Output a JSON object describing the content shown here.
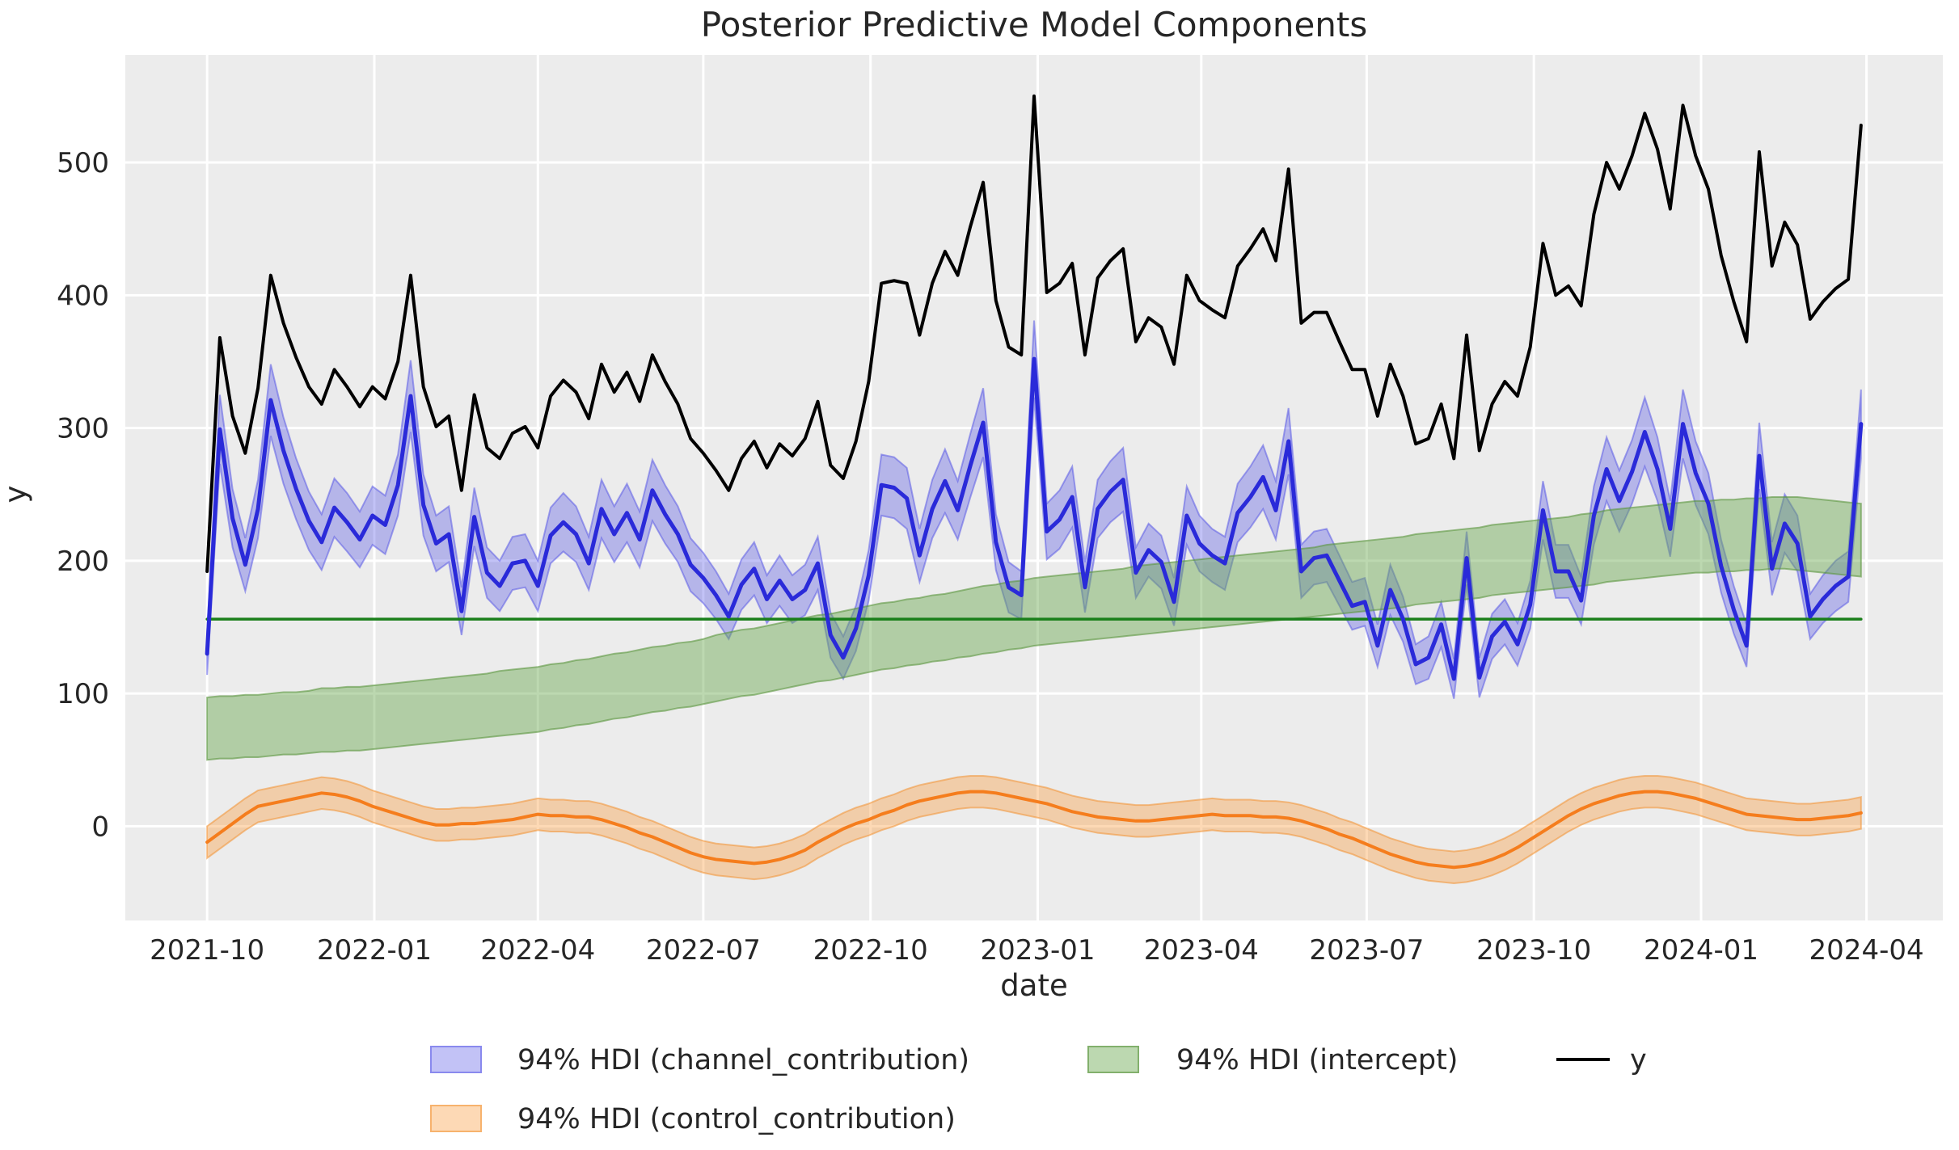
{
  "title": "Posterior Predictive Model Components",
  "axes": {
    "xlabel": "date",
    "ylabel": "y"
  },
  "legend": {
    "items": [
      {
        "label": "94% HDI (channel_contribution)",
        "swatch": "patch",
        "series": "channel"
      },
      {
        "label": "94% HDI (intercept)",
        "swatch": "patch",
        "series": "intercept"
      },
      {
        "label": "y",
        "swatch": "line",
        "series": "y"
      },
      {
        "label": "94% HDI (control_contribution)",
        "swatch": "patch",
        "series": "control"
      }
    ]
  },
  "colors": {
    "figure_bg": "#ffffff",
    "plot_bg": "#ececec",
    "grid": "#ffffff",
    "text": "#262626",
    "y_line": "#000000",
    "channel_line": "#2a2ad9",
    "channel_band_fill": "rgba(80,80,230,0.35)",
    "channel_band_edge": "rgba(80,80,230,0.50)",
    "intercept_line": "#1a7f1a",
    "intercept_band_fill": "rgba(106,168,79,0.45)",
    "intercept_band_edge": "rgba(92,150,64,0.60)",
    "control_line": "#f57d1d",
    "control_band_fill": "rgba(250,160,70,0.40)",
    "control_band_edge": "rgba(243,145,50,0.55)"
  },
  "chart_data": {
    "type": "line",
    "title": "Posterior Predictive Model Components",
    "xlabel": "date",
    "ylabel": "y",
    "grid": true,
    "legend_position": "below",
    "ylim": [
      -71,
      581
    ],
    "xlim_days": [
      -45,
      955
    ],
    "y_ticks": [
      0,
      100,
      200,
      300,
      400,
      500
    ],
    "x_ticks": [
      {
        "label": "2021-10",
        "day": 0
      },
      {
        "label": "2022-01",
        "day": 92
      },
      {
        "label": "2022-04",
        "day": 182
      },
      {
        "label": "2022-07",
        "day": 273
      },
      {
        "label": "2022-10",
        "day": 365
      },
      {
        "label": "2023-01",
        "day": 457
      },
      {
        "label": "2023-04",
        "day": 547
      },
      {
        "label": "2023-07",
        "day": 638
      },
      {
        "label": "2023-10",
        "day": 730
      },
      {
        "label": "2024-01",
        "day": 822
      },
      {
        "label": "2024-04",
        "day": 913
      }
    ],
    "frequency": "weekly",
    "dates": [
      "2021-10-01",
      "2021-10-08",
      "2021-10-15",
      "2021-10-22",
      "2021-10-29",
      "2021-11-05",
      "2021-11-12",
      "2021-11-19",
      "2021-11-26",
      "2021-12-03",
      "2021-12-10",
      "2021-12-17",
      "2021-12-24",
      "2021-12-31",
      "2022-01-07",
      "2022-01-14",
      "2022-01-21",
      "2022-01-28",
      "2022-02-04",
      "2022-02-11",
      "2022-02-18",
      "2022-02-25",
      "2022-03-04",
      "2022-03-11",
      "2022-03-18",
      "2022-03-25",
      "2022-04-01",
      "2022-04-08",
      "2022-04-15",
      "2022-04-22",
      "2022-04-29",
      "2022-05-06",
      "2022-05-13",
      "2022-05-20",
      "2022-05-27",
      "2022-06-03",
      "2022-06-10",
      "2022-06-17",
      "2022-06-24",
      "2022-07-01",
      "2022-07-08",
      "2022-07-15",
      "2022-07-22",
      "2022-07-29",
      "2022-08-05",
      "2022-08-12",
      "2022-08-19",
      "2022-08-26",
      "2022-09-02",
      "2022-09-09",
      "2022-09-16",
      "2022-09-23",
      "2022-09-30",
      "2022-10-07",
      "2022-10-14",
      "2022-10-21",
      "2022-10-28",
      "2022-11-04",
      "2022-11-11",
      "2022-11-18",
      "2022-11-25",
      "2022-12-02",
      "2022-12-09",
      "2022-12-16",
      "2022-12-23",
      "2022-12-30",
      "2023-01-06",
      "2023-01-13",
      "2023-01-20",
      "2023-01-27",
      "2023-02-03",
      "2023-02-10",
      "2023-02-17",
      "2023-02-24",
      "2023-03-03",
      "2023-03-10",
      "2023-03-17",
      "2023-03-24",
      "2023-03-31",
      "2023-04-07",
      "2023-04-14",
      "2023-04-21",
      "2023-04-28",
      "2023-05-05",
      "2023-05-12",
      "2023-05-19",
      "2023-05-26",
      "2023-06-02",
      "2023-06-09",
      "2023-06-16",
      "2023-06-23",
      "2023-06-30",
      "2023-07-07",
      "2023-07-14",
      "2023-07-21",
      "2023-07-28",
      "2023-08-04",
      "2023-08-11",
      "2023-08-18",
      "2023-08-25",
      "2023-09-01",
      "2023-09-08",
      "2023-09-15",
      "2023-09-22",
      "2023-09-29",
      "2023-10-06",
      "2023-10-13",
      "2023-10-20",
      "2023-10-27",
      "2023-11-03",
      "2023-11-10",
      "2023-11-17",
      "2023-11-24",
      "2023-12-01",
      "2023-12-08",
      "2023-12-15",
      "2023-12-22",
      "2023-12-29",
      "2024-01-05",
      "2024-01-12",
      "2024-01-19",
      "2024-01-26",
      "2024-02-02",
      "2024-02-09",
      "2024-02-16",
      "2024-02-23",
      "2024-03-01",
      "2024-03-08",
      "2024-03-15",
      "2024-03-22",
      "2024-03-29"
    ],
    "series": [
      {
        "name": "y",
        "style": "line",
        "values": [
          192,
          368,
          309,
          281,
          330,
          415,
          379,
          353,
          331,
          318,
          344,
          331,
          316,
          331,
          322,
          350,
          415,
          331,
          301,
          309,
          253,
          325,
          285,
          277,
          296,
          301,
          285,
          324,
          336,
          327,
          307,
          348,
          327,
          342,
          320,
          355,
          335,
          318,
          292,
          281,
          268,
          253,
          277,
          290,
          270,
          288,
          279,
          292,
          320,
          272,
          262,
          290,
          335,
          409,
          411,
          409,
          370,
          409,
          433,
          415,
          452,
          485,
          396,
          361,
          355,
          550,
          402,
          409,
          424,
          355,
          413,
          426,
          435,
          365,
          383,
          376,
          348,
          415,
          396,
          389,
          383,
          422,
          435,
          450,
          426,
          495,
          379,
          387,
          387,
          365,
          344,
          344,
          309,
          348,
          324,
          288,
          292,
          318,
          277,
          370,
          283,
          318,
          335,
          324,
          361,
          439,
          400,
          407,
          392,
          461,
          500,
          480,
          505,
          537,
          510,
          465,
          543,
          505,
          480,
          430,
          395,
          365,
          508,
          422,
          455,
          438,
          382,
          395,
          405,
          412,
          528
        ]
      },
      {
        "name": "channel_contribution",
        "style": "line+band",
        "hdi": "94%",
        "mean": [
          130,
          299,
          232,
          197,
          239,
          321,
          283,
          254,
          230,
          214,
          240,
          229,
          216,
          234,
          227,
          257,
          324,
          242,
          213,
          220,
          162,
          233,
          191,
          181,
          198,
          200,
          181,
          219,
          229,
          220,
          198,
          239,
          220,
          236,
          216,
          253,
          235,
          220,
          197,
          187,
          174,
          158,
          182,
          194,
          171,
          185,
          171,
          178,
          198,
          144,
          127,
          149,
          189,
          257,
          255,
          247,
          204,
          239,
          260,
          238,
          272,
          304,
          214,
          180,
          174,
          352,
          222,
          231,
          248,
          180,
          239,
          252,
          261,
          191,
          208,
          199,
          169,
          234,
          213,
          204,
          198,
          236,
          248,
          263,
          238,
          290,
          192,
          202,
          204,
          185,
          166,
          169,
          136,
          178,
          156,
          122,
          127,
          152,
          111,
          202,
          112,
          143,
          154,
          137,
          167,
          238,
          192,
          192,
          170,
          234,
          269,
          245,
          267,
          297,
          269,
          224,
          303,
          266,
          243,
          196,
          163,
          136,
          279,
          194,
          228,
          213,
          158,
          171,
          181,
          188,
          303
        ],
        "hdi_low": [
          114,
          273,
          210,
          177,
          217,
          294,
          258,
          231,
          208,
          193,
          218,
          207,
          195,
          212,
          205,
          234,
          297,
          219,
          192,
          199,
          144,
          211,
          172,
          162,
          178,
          180,
          162,
          198,
          207,
          199,
          178,
          217,
          199,
          214,
          195,
          230,
          213,
          199,
          177,
          168,
          156,
          141,
          163,
          174,
          153,
          166,
          153,
          159,
          178,
          127,
          111,
          132,
          170,
          234,
          232,
          224,
          184,
          217,
          236,
          216,
          248,
          278,
          193,
          161,
          156,
          323,
          201,
          209,
          225,
          161,
          217,
          229,
          237,
          172,
          188,
          179,
          151,
          212,
          192,
          184,
          178,
          214,
          225,
          239,
          216,
          265,
          172,
          182,
          184,
          166,
          148,
          151,
          120,
          159,
          139,
          107,
          111,
          135,
          96,
          182,
          97,
          126,
          137,
          121,
          149,
          216,
          172,
          172,
          152,
          212,
          245,
          222,
          243,
          271,
          245,
          203,
          277,
          242,
          220,
          176,
          145,
          120,
          254,
          174,
          206,
          192,
          141,
          153,
          162,
          169,
          277
        ],
        "hdi_high": [
          146,
          325,
          254,
          217,
          261,
          348,
          308,
          277,
          252,
          235,
          262,
          251,
          237,
          256,
          249,
          280,
          351,
          265,
          234,
          241,
          180,
          255,
          210,
          200,
          218,
          220,
          200,
          240,
          251,
          241,
          218,
          261,
          241,
          258,
          237,
          276,
          257,
          241,
          217,
          206,
          192,
          175,
          201,
          214,
          189,
          204,
          189,
          197,
          218,
          161,
          143,
          166,
          208,
          280,
          278,
          270,
          224,
          261,
          284,
          260,
          296,
          330,
          235,
          199,
          192,
          381,
          243,
          253,
          271,
          199,
          261,
          275,
          285,
          210,
          228,
          219,
          187,
          256,
          234,
          224,
          218,
          258,
          271,
          287,
          260,
          315,
          212,
          222,
          224,
          204,
          184,
          187,
          152,
          197,
          173,
          137,
          143,
          169,
          126,
          222,
          127,
          160,
          171,
          153,
          185,
          260,
          212,
          212,
          188,
          256,
          293,
          268,
          291,
          323,
          293,
          245,
          329,
          290,
          266,
          216,
          181,
          152,
          304,
          214,
          250,
          234,
          175,
          189,
          200,
          207,
          329
        ]
      },
      {
        "name": "intercept",
        "style": "band+hline",
        "hdi": "94%",
        "mean_line_value": 156,
        "hdi_low": [
          50,
          51,
          51,
          52,
          52,
          53,
          54,
          54,
          55,
          56,
          56,
          57,
          57,
          58,
          59,
          60,
          61,
          62,
          63,
          64,
          65,
          66,
          67,
          68,
          69,
          70,
          71,
          73,
          74,
          76,
          77,
          79,
          81,
          82,
          84,
          86,
          87,
          89,
          90,
          92,
          94,
          96,
          98,
          99,
          101,
          103,
          105,
          107,
          109,
          110,
          112,
          114,
          116,
          118,
          119,
          121,
          122,
          124,
          125,
          127,
          128,
          130,
          131,
          133,
          134,
          136,
          137,
          138,
          139,
          140,
          141,
          142,
          143,
          144,
          145,
          146,
          147,
          148,
          149,
          150,
          151,
          152,
          153,
          154,
          155,
          156,
          157,
          158,
          159,
          160,
          161,
          162,
          163,
          164,
          165,
          167,
          168,
          169,
          170,
          171,
          172,
          174,
          175,
          176,
          177,
          178,
          179,
          180,
          181,
          182,
          184,
          185,
          186,
          187,
          188,
          189,
          190,
          191,
          191,
          192,
          192,
          193,
          193,
          194,
          194,
          193,
          192,
          191,
          190,
          189,
          188
        ],
        "hdi_high": [
          97,
          98,
          98,
          99,
          99,
          100,
          101,
          101,
          102,
          104,
          104,
          105,
          105,
          106,
          107,
          108,
          109,
          110,
          111,
          112,
          113,
          114,
          115,
          117,
          118,
          119,
          120,
          122,
          123,
          125,
          126,
          128,
          130,
          131,
          133,
          135,
          136,
          138,
          139,
          141,
          144,
          146,
          148,
          149,
          151,
          153,
          155,
          157,
          159,
          160,
          162,
          164,
          166,
          168,
          169,
          171,
          172,
          174,
          175,
          177,
          179,
          181,
          182,
          184,
          185,
          187,
          188,
          189,
          190,
          191,
          192,
          193,
          194,
          196,
          197,
          198,
          199,
          200,
          201,
          202,
          203,
          204,
          205,
          206,
          207,
          208,
          209,
          210,
          212,
          213,
          214,
          215,
          216,
          217,
          218,
          220,
          221,
          222,
          223,
          224,
          225,
          227,
          228,
          229,
          230,
          231,
          232,
          233,
          235,
          236,
          238,
          239,
          240,
          241,
          242,
          243,
          244,
          245,
          245,
          246,
          246,
          247,
          247,
          248,
          248,
          248,
          247,
          246,
          245,
          244,
          243
        ]
      },
      {
        "name": "control_contribution",
        "style": "line+band",
        "hdi": "94%",
        "hdi_halfwidth": 12,
        "mean": [
          -12,
          -5,
          2,
          9,
          15,
          17,
          19,
          21,
          23,
          25,
          24,
          22,
          19,
          15,
          12,
          9,
          6,
          3,
          1,
          1,
          2,
          2,
          3,
          4,
          5,
          7,
          9,
          8,
          8,
          7,
          7,
          5,
          2,
          -1,
          -5,
          -8,
          -12,
          -16,
          -20,
          -23,
          -25,
          -26,
          -27,
          -28,
          -27,
          -25,
          -22,
          -18,
          -12,
          -7,
          -2,
          2,
          5,
          9,
          12,
          16,
          19,
          21,
          23,
          25,
          26,
          26,
          25,
          23,
          21,
          19,
          17,
          14,
          11,
          9,
          7,
          6,
          5,
          4,
          4,
          5,
          6,
          7,
          8,
          9,
          8,
          8,
          8,
          7,
          7,
          6,
          4,
          1,
          -2,
          -6,
          -9,
          -13,
          -17,
          -21,
          -24,
          -27,
          -29,
          -30,
          -31,
          -30,
          -28,
          -25,
          -21,
          -16,
          -10,
          -4,
          2,
          8,
          13,
          17,
          20,
          23,
          25,
          26,
          26,
          25,
          23,
          21,
          18,
          15,
          12,
          9,
          8,
          7,
          6,
          5,
          5,
          6,
          7,
          8,
          10
        ]
      }
    ]
  }
}
